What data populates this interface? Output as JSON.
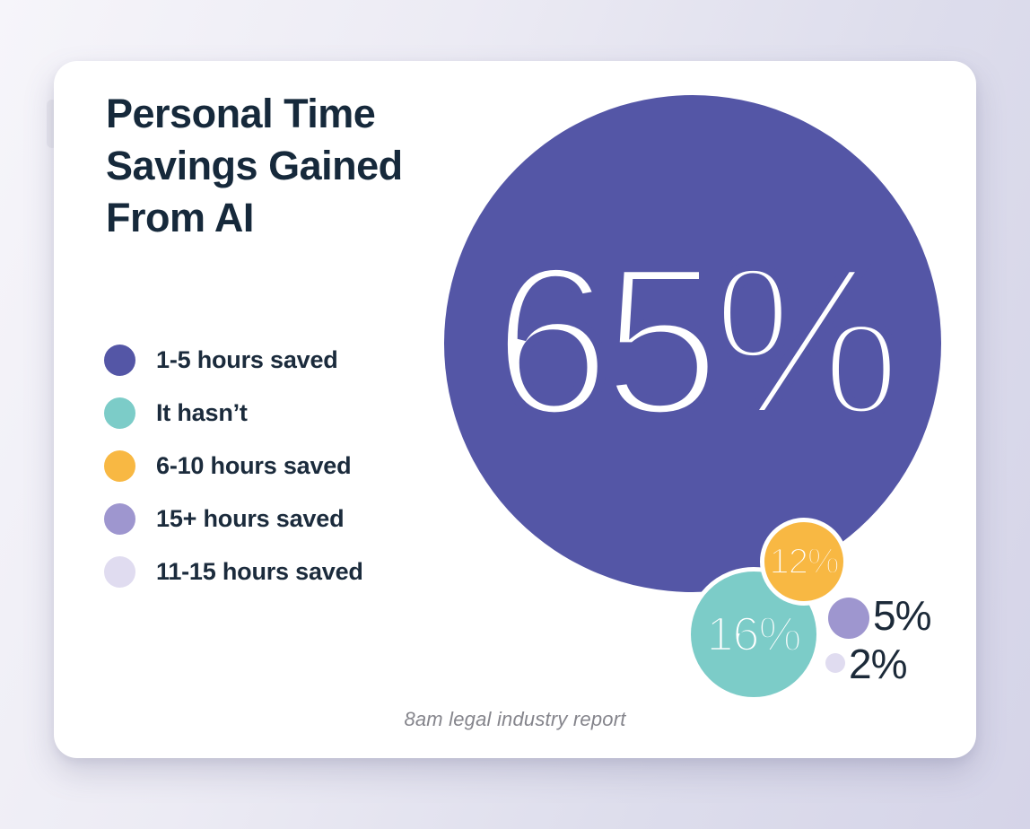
{
  "header": {
    "title_lines": [
      "Personal Time",
      "Savings Gained",
      "From AI"
    ]
  },
  "legend": {
    "items": [
      {
        "label": "1-5 hours saved",
        "color": "#5456a6",
        "value": 65
      },
      {
        "label": "It hasn’t",
        "color": "#7cccc8",
        "value": 16
      },
      {
        "label": "6-10 hours saved",
        "color": "#f8b843",
        "value": 12
      },
      {
        "label": "15+ hours saved",
        "color": "#9e96cf",
        "value": 5
      },
      {
        "label": "11-15 hours saved",
        "color": "#e0dcf0",
        "value": 2
      }
    ]
  },
  "bubbles": [
    {
      "category": "1-5 hours saved",
      "value_label": "65%",
      "color": "#5456a6",
      "label_placement": "inside"
    },
    {
      "category": "It hasn’t",
      "value_label": "16%",
      "color": "#7cccc8",
      "label_placement": "inside"
    },
    {
      "category": "6-10 hours saved",
      "value_label": "12%",
      "color": "#f8b843",
      "label_placement": "inside"
    },
    {
      "category": "15+ hours saved",
      "value_label": "5%",
      "color": "#9e96cf",
      "label_placement": "outside"
    },
    {
      "category": "11-15 hours saved",
      "value_label": "2%",
      "color": "#e0dcf0",
      "label_placement": "outside"
    }
  ],
  "footer": {
    "source": "8am legal industry report"
  },
  "colors": {
    "card_background": "#ffffff",
    "title_text": "#16293b",
    "bubble_value_text": "#ffffff",
    "outside_label_text": "#1c2a39",
    "source_text": "#85858c",
    "page_background": "#dddcec"
  },
  "chart_data": {
    "type": "pie",
    "variant": "packed-bubble",
    "title": "Personal Time Savings Gained From AI",
    "categories": [
      "1-5 hours saved",
      "It hasn’t",
      "6-10 hours saved",
      "15+ hours saved",
      "11-15 hours saved"
    ],
    "values": [
      65,
      16,
      12,
      5,
      2
    ],
    "unit": "%",
    "value_labels": [
      "65%",
      "16%",
      "12%",
      "5%",
      "2%"
    ],
    "colors": [
      "#5456a6",
      "#7cccc8",
      "#f8b843",
      "#9e96cf",
      "#e0dcf0"
    ],
    "legend_position": "left",
    "grid": false,
    "source": "8am legal industry report"
  }
}
